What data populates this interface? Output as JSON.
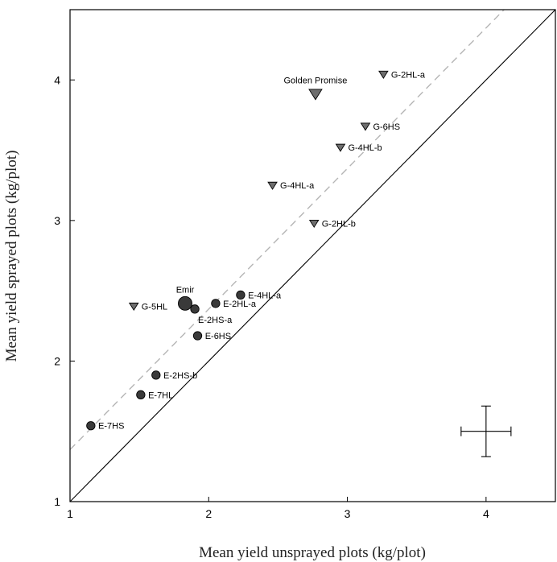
{
  "chart_data": {
    "type": "scatter",
    "xlabel": "Mean yield unsprayed plots (kg/plot)",
    "ylabel": "Mean yield sprayed plots (kg/plot)",
    "xlim": [
      1,
      4.5
    ],
    "ylim": [
      1,
      4.5
    ],
    "xticks": [
      "1",
      "2",
      "3",
      "4"
    ],
    "yticks": [
      "1",
      "2",
      "3",
      "4"
    ],
    "grid": false,
    "colors": {
      "triangle": "#6e6e6e",
      "circle": "#3a3a3a",
      "dashed": "#b5b5b5",
      "line": "#000000"
    },
    "reference_lines": [
      {
        "style": "solid",
        "slope": 1,
        "intercept": 0
      },
      {
        "style": "dashed",
        "slope": 1,
        "intercept": 0.37
      }
    ],
    "error_bar": {
      "x": 4.0,
      "y": 1.5,
      "x_err": 0.18,
      "y_err": 0.18
    },
    "points": [
      {
        "label": "G-2HL-a",
        "x": 3.26,
        "y": 4.04,
        "marker": "triangle",
        "size": "small",
        "label_side": "right"
      },
      {
        "label": "Golden Promise",
        "x": 2.77,
        "y": 3.9,
        "marker": "triangle",
        "size": "large",
        "label_side": "above"
      },
      {
        "label": "G-6HS",
        "x": 3.13,
        "y": 3.67,
        "marker": "triangle",
        "size": "small",
        "label_side": "right"
      },
      {
        "label": "G-4HL-b",
        "x": 2.95,
        "y": 3.52,
        "marker": "triangle",
        "size": "small",
        "label_side": "right"
      },
      {
        "label": "G-4HL-a",
        "x": 2.46,
        "y": 3.25,
        "marker": "triangle",
        "size": "small",
        "label_side": "right"
      },
      {
        "label": "G-2HL-b",
        "x": 2.76,
        "y": 2.98,
        "marker": "triangle",
        "size": "small",
        "label_side": "right"
      },
      {
        "label": "G-5HL",
        "x": 1.46,
        "y": 2.39,
        "marker": "triangle",
        "size": "small",
        "label_side": "right"
      },
      {
        "label": "Emir",
        "x": 1.83,
        "y": 2.41,
        "marker": "circle",
        "size": "large",
        "label_side": "above"
      },
      {
        "label": "E-4HL-a",
        "x": 2.23,
        "y": 2.47,
        "marker": "circle",
        "size": "small",
        "label_side": "right"
      },
      {
        "label": "E-2HL-a",
        "x": 2.05,
        "y": 2.41,
        "marker": "circle",
        "size": "small",
        "label_side": "right"
      },
      {
        "label": "E-2HS-a",
        "x": 1.9,
        "y": 2.37,
        "marker": "circle",
        "size": "small",
        "label_side": "below"
      },
      {
        "label": "E-6HS",
        "x": 1.92,
        "y": 2.18,
        "marker": "circle",
        "size": "small",
        "label_side": "right"
      },
      {
        "label": "E-2HS-b",
        "x": 1.62,
        "y": 1.9,
        "marker": "circle",
        "size": "small",
        "label_side": "right"
      },
      {
        "label": "E-7HL",
        "x": 1.51,
        "y": 1.76,
        "marker": "circle",
        "size": "small",
        "label_side": "right"
      },
      {
        "label": "E-7HS",
        "x": 1.15,
        "y": 1.54,
        "marker": "circle",
        "size": "small",
        "label_side": "right"
      }
    ]
  }
}
